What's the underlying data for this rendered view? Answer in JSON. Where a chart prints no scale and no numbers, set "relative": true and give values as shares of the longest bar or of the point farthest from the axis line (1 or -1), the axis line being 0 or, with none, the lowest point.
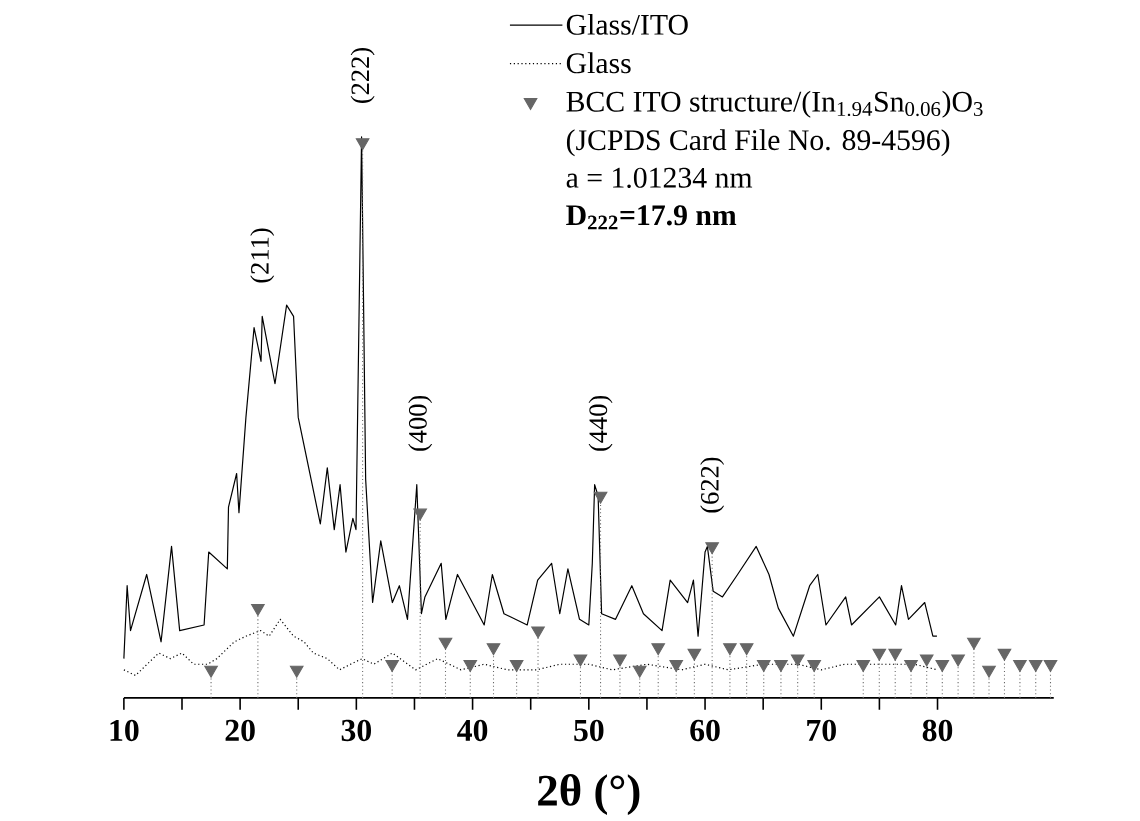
{
  "chart_data": {
    "type": "line",
    "relative": true,
    "xlabel": "2θ (°)",
    "xlim": [
      10,
      90
    ],
    "xticks": [
      10,
      20,
      30,
      40,
      50,
      60,
      70,
      80,
      {
        "value": 15,
        "label": null
      },
      {
        "value": 25,
        "label": null
      },
      {
        "value": 35,
        "label": null
      },
      {
        "value": 45,
        "label": null
      },
      {
        "value": 55,
        "label": null
      },
      {
        "value": 65,
        "label": null
      },
      {
        "value": 75,
        "label": null
      }
    ],
    "legend": "top right",
    "series": [
      {
        "name": "Glass/ITO",
        "color": "#000000",
        "line_style": "solid",
        "x": [
          10.0,
          10.28,
          10.57,
          11.96,
          13.2,
          14.1,
          14.8,
          16.9,
          17.3,
          18.9,
          19.0,
          19.7,
          19.9,
          20.5,
          21.2,
          21.8,
          21.9,
          23.0,
          24.0,
          24.6,
          25.0,
          26.0,
          26.9,
          27.5,
          28.1,
          28.6,
          29.1,
          29.7,
          29.97,
          30.45,
          30.8,
          31.4,
          32.1,
          33.1,
          33.7,
          34.4,
          35.2,
          35.6,
          35.9,
          37.3,
          37.7,
          38.7,
          41.0,
          41.7,
          42.7,
          44.7,
          45.6,
          46.8,
          47.5,
          48.2,
          49.2,
          50.0,
          50.3,
          50.5,
          50.8,
          51.1,
          52.3,
          53.7,
          54.7,
          56.3,
          57.0,
          58.5,
          59.0,
          59.4,
          60.0,
          60.2,
          60.7,
          61.5,
          62.8,
          64.4,
          65.5,
          66.3,
          67.6,
          69.0,
          69.7,
          70.4,
          72.1,
          72.6,
          75.0,
          76.4,
          76.9,
          77.5,
          78.9,
          79.6,
          79.95
        ],
        "values": [
          0.07,
          0.2,
          0.12,
          0.22,
          0.1,
          0.27,
          0.12,
          0.13,
          0.26,
          0.23,
          0.34,
          0.4,
          0.33,
          0.5,
          0.66,
          0.6,
          0.68,
          0.56,
          0.7,
          0.68,
          0.5,
          0.4,
          0.31,
          0.41,
          0.3,
          0.38,
          0.26,
          0.32,
          0.3,
          1.0,
          0.39,
          0.17,
          0.28,
          0.17,
          0.2,
          0.14,
          0.38,
          0.15,
          0.18,
          0.24,
          0.14,
          0.22,
          0.13,
          0.22,
          0.15,
          0.13,
          0.21,
          0.24,
          0.15,
          0.23,
          0.14,
          0.13,
          0.24,
          0.38,
          0.36,
          0.15,
          0.14,
          0.2,
          0.15,
          0.12,
          0.21,
          0.17,
          0.21,
          0.11,
          0.26,
          0.27,
          0.19,
          0.18,
          0.22,
          0.27,
          0.22,
          0.16,
          0.11,
          0.2,
          0.22,
          0.13,
          0.18,
          0.13,
          0.18,
          0.13,
          0.2,
          0.14,
          0.17,
          0.11,
          0.11
        ]
      },
      {
        "name": "Glass",
        "color": "#000000",
        "line_style": "dotted",
        "x": [
          10,
          11,
          12,
          13,
          14,
          15,
          16,
          17.2,
          18,
          19.5,
          20.5,
          21.75,
          22.5,
          23.45,
          24.6,
          25.5,
          26.3,
          27.5,
          28.55,
          29.5,
          30.5,
          31.5,
          33.1,
          35.1,
          37,
          39,
          41,
          43,
          45.5,
          47.5,
          50,
          52,
          55,
          58,
          60,
          62,
          65,
          68,
          70,
          72,
          75,
          78,
          80
        ],
        "values": [
          0.05,
          0.04,
          0.06,
          0.08,
          0.07,
          0.08,
          0.06,
          0.06,
          0.07,
          0.1,
          0.11,
          0.12,
          0.11,
          0.14,
          0.11,
          0.1,
          0.08,
          0.07,
          0.05,
          0.06,
          0.07,
          0.06,
          0.08,
          0.05,
          0.07,
          0.05,
          0.06,
          0.05,
          0.05,
          0.06,
          0.06,
          0.05,
          0.06,
          0.05,
          0.06,
          0.05,
          0.06,
          0.06,
          0.05,
          0.06,
          0.06,
          0.06,
          0.05
        ]
      },
      {
        "name": "BCC ITO structure/(In$_{1.94}$Sn$_{0.06}$)O$_{3}$",
        "type": "lollipop",
        "color": "#666666",
        "marker": "triangle",
        "line_style": "dotted",
        "x": [
          17.5,
          21.53,
          24.87,
          30.54,
          33.08,
          35.49,
          37.67,
          39.8,
          41.8,
          43.79,
          45.63,
          49.28,
          51.01,
          52.68,
          54.38,
          55.97,
          57.52,
          59.08,
          60.61,
          62.14,
          63.58,
          65.05,
          66.53,
          67.97,
          69.39,
          73.61,
          74.99,
          76.36,
          77.72,
          79.07,
          80.41,
          81.77,
          83.13,
          84.43,
          85.76,
          87.09,
          88.45,
          89.72
        ],
        "values": [
          0.05,
          0.16,
          0.05,
          0.99,
          0.06,
          0.33,
          0.1,
          0.06,
          0.09,
          0.06,
          0.12,
          0.07,
          0.36,
          0.07,
          0.05,
          0.09,
          0.06,
          0.08,
          0.27,
          0.09,
          0.09,
          0.06,
          0.06,
          0.07,
          0.06,
          0.06,
          0.08,
          0.08,
          0.06,
          0.07,
          0.06,
          0.07,
          0.1,
          0.05,
          0.08,
          0.06,
          0.06,
          0.06
        ]
      }
    ],
    "annotations": [
      {
        "text": "(211)",
        "x": 21.9,
        "y": 0.68
      },
      {
        "text": "(222)",
        "x": 30.54,
        "y": 0.99
      },
      {
        "text": "(400)",
        "x": 35.49,
        "y": 0.33
      },
      {
        "text": "(440)",
        "x": 51.01,
        "y": 0.36
      },
      {
        "text": "(622)",
        "x": 60.61,
        "y": 0.27
      },
      "(JCPDS Card File No. 89-4596)",
      "a = 1.01234 nm",
      "**D$_{222}$=17.9 nm**"
    ]
  }
}
